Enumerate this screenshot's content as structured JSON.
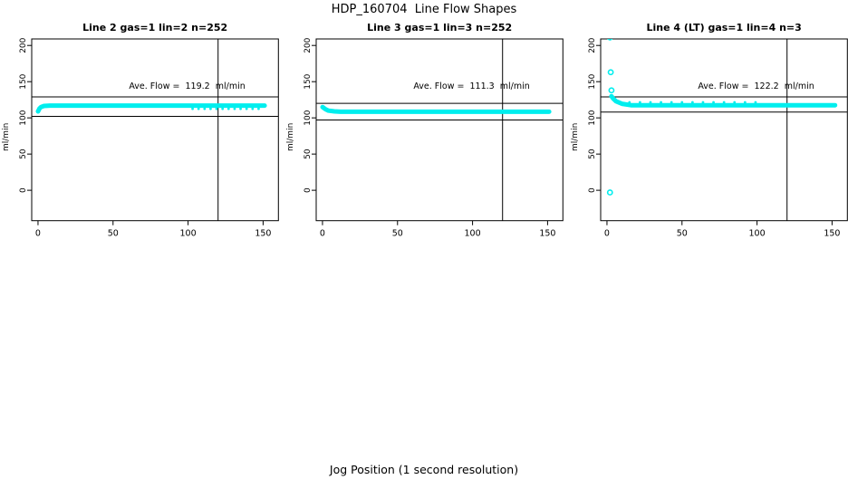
{
  "figure": {
    "title": "HDP_160704  Line Flow Shapes",
    "xlabel": "Jog Position (1 second resolution)"
  },
  "chart_data": [
    {
      "type": "scatter",
      "title": "Line 2 gas=1 lin=2 n=252",
      "ylabel": "ml/min",
      "ave_flow": 119.2,
      "ave_flow_text": "Ave. Flow =  119.2  ml/min",
      "marker_color": "#00eeee",
      "xlim": [
        -4.2,
        160.2
      ],
      "ylim": [
        -42,
        209
      ],
      "xticks": [
        0,
        50,
        100,
        150
      ],
      "yticks": [
        0,
        50,
        100,
        150,
        200
      ],
      "hlines": [
        129,
        102
      ],
      "vline": 120,
      "band_profile": [
        [
          0,
          109
        ],
        [
          1,
          113
        ],
        [
          2,
          115
        ],
        [
          4,
          116.5
        ],
        [
          8,
          117
        ],
        [
          151,
          117
        ]
      ],
      "dots": [
        [
          103,
          112.5
        ],
        [
          107,
          112.5
        ],
        [
          111,
          112.5
        ],
        [
          115,
          112.5
        ],
        [
          119,
          112.5
        ],
        [
          123,
          112.5
        ],
        [
          127,
          112.5
        ],
        [
          131,
          112.5
        ],
        [
          135,
          112.5
        ],
        [
          139,
          112.5
        ],
        [
          143,
          112.5
        ],
        [
          147,
          112.5
        ]
      ],
      "outliers": []
    },
    {
      "type": "scatter",
      "title": "Line 3 gas=1 lin=3 n=252",
      "ylabel": "ml/min",
      "ave_flow": 111.3,
      "ave_flow_text": "Ave. Flow =  111.3  ml/min",
      "marker_color": "#00eeee",
      "xlim": [
        -4.2,
        160.2
      ],
      "ylim": [
        -42,
        209
      ],
      "xticks": [
        0,
        50,
        100,
        150
      ],
      "yticks": [
        0,
        50,
        100,
        150,
        200
      ],
      "hlines": [
        120,
        97
      ],
      "vline": 120,
      "band_profile": [
        [
          0,
          115
        ],
        [
          2,
          112
        ],
        [
          4,
          110
        ],
        [
          8,
          109
        ],
        [
          12,
          108.5
        ],
        [
          151,
          108.5
        ]
      ],
      "dots": [],
      "outliers": []
    },
    {
      "type": "scatter",
      "title": "Line 4 (LT) gas=1 lin=4 n=3",
      "ylabel": "ml/min",
      "ave_flow": 122.2,
      "ave_flow_text": "Ave. Flow =  122.2  ml/min",
      "marker_color": "#00eeee",
      "xlim": [
        -4.2,
        160.2
      ],
      "ylim": [
        -42,
        209
      ],
      "xticks": [
        0,
        50,
        100,
        150
      ],
      "yticks": [
        0,
        50,
        100,
        150,
        200
      ],
      "hlines": [
        129,
        108
      ],
      "vline": 120,
      "band_profile": [
        [
          3,
          130
        ],
        [
          4,
          127
        ],
        [
          6,
          123
        ],
        [
          10,
          119.5
        ],
        [
          16,
          117.5
        ],
        [
          152,
          117.5
        ]
      ],
      "dots": [
        [
          15,
          121.5
        ],
        [
          22,
          121.5
        ],
        [
          29,
          121.5
        ],
        [
          36,
          121.5
        ],
        [
          43,
          121.5
        ],
        [
          50,
          121.5
        ],
        [
          57,
          121.5
        ],
        [
          64,
          121.5
        ],
        [
          71,
          121.5
        ],
        [
          78,
          121.5
        ],
        [
          85,
          121.5
        ],
        [
          92,
          121.5
        ],
        [
          99,
          121.5
        ]
      ],
      "outliers": [
        [
          2,
          -3
        ],
        [
          2,
          211
        ],
        [
          2.5,
          163
        ],
        [
          3,
          138
        ]
      ]
    }
  ]
}
